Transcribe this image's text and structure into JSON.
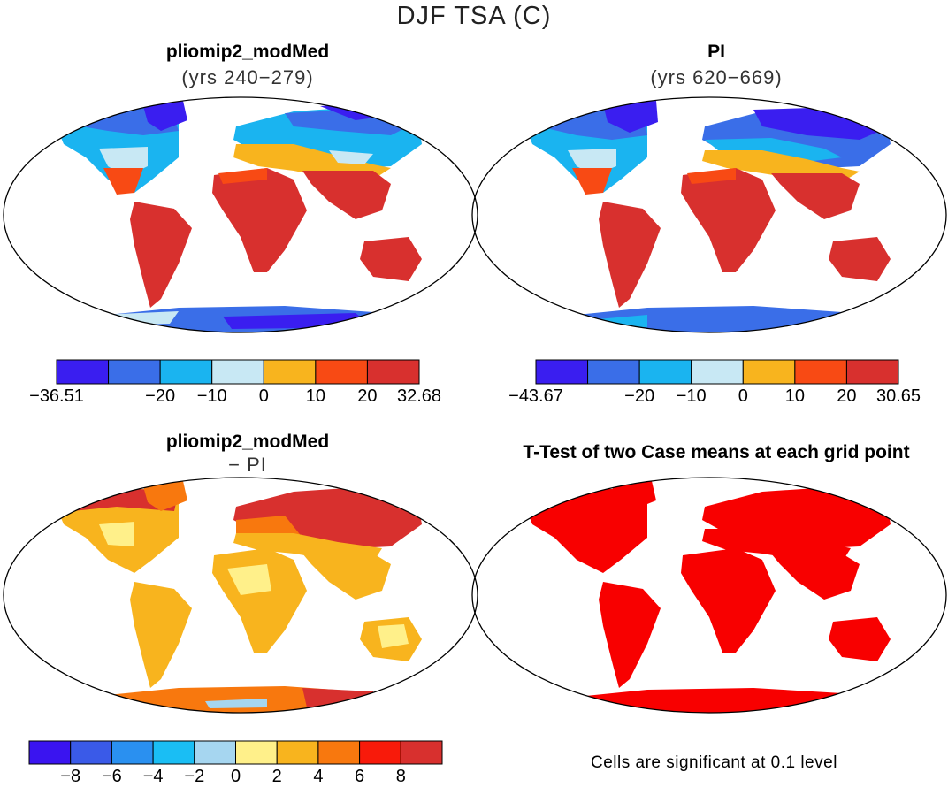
{
  "main_title": "DJF TSA (C)",
  "panels": {
    "top_left": {
      "title": "pliomip2_modMed",
      "subtitle": "(yrs 240−279)"
    },
    "top_right": {
      "title": "PI",
      "subtitle": "(yrs 620−669)"
    },
    "bottom_left": {
      "title": "pliomip2_modMed",
      "subtitle": "− PI"
    },
    "bottom_right": {
      "title": "T-Test of two Case means at each grid point"
    }
  },
  "colorbars": {
    "top_left": {
      "colors": [
        "#3a1ef0",
        "#3a6ee8",
        "#1ab4f0",
        "#c8e8f4",
        "#f8b41e",
        "#f84a14",
        "#d8302e"
      ],
      "labels": [
        "−36.51",
        "−20",
        "−10",
        "0",
        "10",
        "20",
        "32.68"
      ]
    },
    "top_right": {
      "colors": [
        "#3a1ef0",
        "#3a6ee8",
        "#1ab4f0",
        "#c8e8f4",
        "#f8b41e",
        "#f84a14",
        "#d8302e"
      ],
      "labels": [
        "−43.67",
        "−20",
        "−10",
        "0",
        "10",
        "20",
        "30.65"
      ]
    },
    "bottom": {
      "colors": [
        "#3a14f0",
        "#3a5ae8",
        "#2a90f0",
        "#1abef4",
        "#a6d6f0",
        "#fff08a",
        "#f8b41e",
        "#f8780e",
        "#f81a0a",
        "#d8302e"
      ],
      "labels": [
        "−8",
        "−6",
        "−4",
        "−2",
        "0",
        "2",
        "4",
        "6",
        "8"
      ]
    }
  },
  "footnote": "Cells are significant at 0.1 level"
}
